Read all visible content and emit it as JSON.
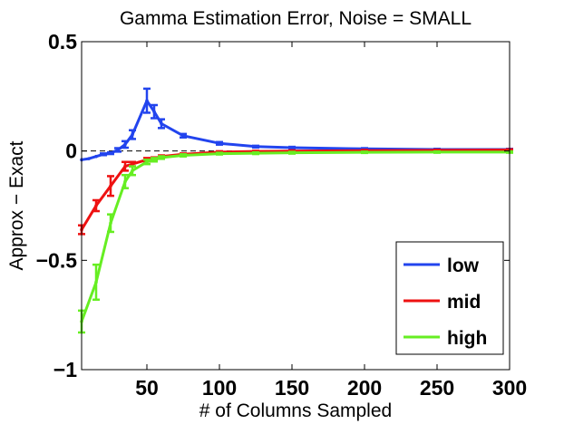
{
  "chart_data": {
    "type": "line",
    "title": "Gamma Estimation Error, Noise = SMALL",
    "xlabel": "# of Columns Sampled",
    "ylabel": "Approx − Exact",
    "xlim": [
      5,
      300
    ],
    "ylim": [
      -1,
      0.5
    ],
    "xticks": [
      50,
      100,
      150,
      200,
      250,
      300
    ],
    "xtick_labels": [
      "50",
      "100",
      "150",
      "200",
      "250",
      "300"
    ],
    "yticks": [
      0.5,
      0,
      -0.5,
      -1
    ],
    "ytick_labels": [
      "0.5",
      "0",
      "−0.5",
      "−1"
    ],
    "reference_line": 0,
    "legend_position": "bottom-right",
    "series": [
      {
        "name": "low",
        "color": "#2244ee",
        "points": [
          {
            "x": 5,
            "y": -0.04,
            "err": 0.0
          },
          {
            "x": 10,
            "y": -0.035,
            "err": 0.0
          },
          {
            "x": 15,
            "y": -0.025,
            "err": 0.0
          },
          {
            "x": 20,
            "y": -0.015,
            "err": 0.004
          },
          {
            "x": 25,
            "y": -0.01,
            "err": 0.004
          },
          {
            "x": 30,
            "y": 0.005,
            "err": 0.008
          },
          {
            "x": 35,
            "y": 0.03,
            "err": 0.015
          },
          {
            "x": 40,
            "y": 0.075,
            "err": 0.02
          },
          {
            "x": 50,
            "y": 0.23,
            "err": 0.055
          },
          {
            "x": 55,
            "y": 0.18,
            "err": 0.03
          },
          {
            "x": 60,
            "y": 0.125,
            "err": 0.02
          },
          {
            "x": 75,
            "y": 0.07,
            "err": 0.008
          },
          {
            "x": 100,
            "y": 0.035,
            "err": 0.006
          },
          {
            "x": 125,
            "y": 0.02,
            "err": 0.004
          },
          {
            "x": 150,
            "y": 0.015,
            "err": 0.004
          },
          {
            "x": 200,
            "y": 0.01,
            "err": 0.003
          },
          {
            "x": 250,
            "y": 0.007,
            "err": 0.003
          },
          {
            "x": 300,
            "y": 0.007,
            "err": 0.003
          }
        ]
      },
      {
        "name": "mid",
        "color": "#ee1111",
        "points": [
          {
            "x": 5,
            "y": -0.36,
            "err": 0.02
          },
          {
            "x": 15,
            "y": -0.25,
            "err": 0.025
          },
          {
            "x": 25,
            "y": -0.16,
            "err": 0.045
          },
          {
            "x": 35,
            "y": -0.07,
            "err": 0.02
          },
          {
            "x": 40,
            "y": -0.06,
            "err": 0.01
          },
          {
            "x": 50,
            "y": -0.04,
            "err": 0.008
          },
          {
            "x": 55,
            "y": -0.035,
            "err": 0.006
          },
          {
            "x": 60,
            "y": -0.025,
            "err": 0.005
          },
          {
            "x": 75,
            "y": -0.015,
            "err": 0.004
          },
          {
            "x": 100,
            "y": -0.005,
            "err": 0.004
          },
          {
            "x": 125,
            "y": -0.002,
            "err": 0.003
          },
          {
            "x": 150,
            "y": 0.0,
            "err": 0.003
          },
          {
            "x": 200,
            "y": 0.002,
            "err": 0.003
          },
          {
            "x": 250,
            "y": 0.003,
            "err": 0.003
          },
          {
            "x": 300,
            "y": 0.005,
            "err": 0.003
          }
        ]
      },
      {
        "name": "high",
        "color": "#66ee22",
        "points": [
          {
            "x": 5,
            "y": -0.78,
            "err": 0.05
          },
          {
            "x": 15,
            "y": -0.6,
            "err": 0.08
          },
          {
            "x": 25,
            "y": -0.33,
            "err": 0.04
          },
          {
            "x": 35,
            "y": -0.14,
            "err": 0.03
          },
          {
            "x": 40,
            "y": -0.09,
            "err": 0.02
          },
          {
            "x": 50,
            "y": -0.05,
            "err": 0.01
          },
          {
            "x": 55,
            "y": -0.04,
            "err": 0.008
          },
          {
            "x": 60,
            "y": -0.03,
            "err": 0.006
          },
          {
            "x": 75,
            "y": -0.02,
            "err": 0.005
          },
          {
            "x": 100,
            "y": -0.012,
            "err": 0.004
          },
          {
            "x": 125,
            "y": -0.01,
            "err": 0.004
          },
          {
            "x": 150,
            "y": -0.008,
            "err": 0.004
          },
          {
            "x": 200,
            "y": -0.006,
            "err": 0.003
          },
          {
            "x": 250,
            "y": -0.005,
            "err": 0.003
          },
          {
            "x": 300,
            "y": -0.005,
            "err": 0.003
          }
        ]
      }
    ]
  }
}
